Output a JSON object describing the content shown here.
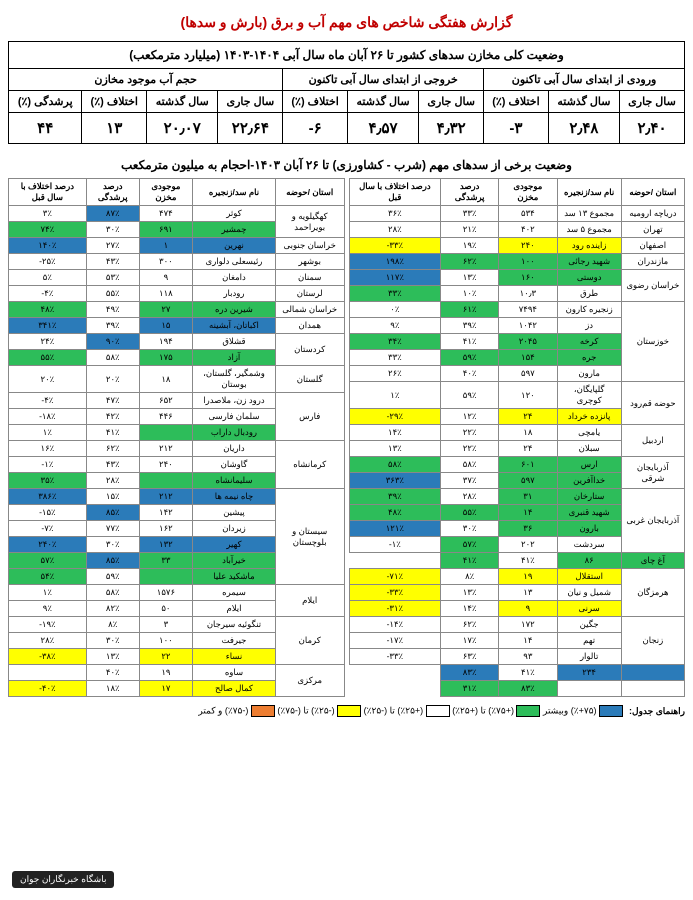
{
  "colors": {
    "blue": "#2b7bb9",
    "green": "#2dbd5a",
    "white": "#ffffff",
    "yellow": "#ffff00",
    "orange": "#ed7d31",
    "title": "#c00000"
  },
  "title": "گزارش هفتگی شاخص های مهم آب و برق (بارش و سدها)",
  "summary": {
    "caption": "وضعیت کلی مخازن سدهای کشور تا ۲۶ آبان ماه سال آبی ۱۴۰۴-۱۴۰۳ (میلیارد مترمکعب)",
    "groups": [
      {
        "label": "ورودی از ابتدای سال آبی تاکنون",
        "cols": [
          "سال جاری",
          "سال گذشته",
          "اختلاف (٪)"
        ],
        "vals": [
          "۲٫۴۰",
          "۲٫۴۸",
          "-۳"
        ]
      },
      {
        "label": "خروجی از ابتدای سال آبی تاکنون",
        "cols": [
          "سال جاری",
          "سال گذشته",
          "اختلاف (٪)"
        ],
        "vals": [
          "۴٫۳۲",
          "۴٫۵۷",
          "-۶"
        ]
      },
      {
        "label": "حجم آب موجود مخازن",
        "cols": [
          "سال جاری",
          "سال گذشته",
          "اختلاف (٪)",
          "پرشدگی (٪)"
        ],
        "vals": [
          "۲۲٫۶۴",
          "۲۰٫۰۷",
          "۱۳",
          "۴۴"
        ]
      }
    ]
  },
  "sub_title": "وضعیت برخی از سدهای مهم (شرب - کشاورزی) تا ۲۶ آبان ۱۴۰۳-احجام به میلیون مترمکعب",
  "dam_headers": [
    "استان /حوضه",
    "نام سد/زنجیره",
    "موجودی مخزن",
    "درصد پرشدگی",
    "درصد اختلاف با سال قبل"
  ],
  "right_rows": [
    {
      "prov": "دریاچه ارومیه",
      "rs": 1,
      "dam": "مجموع ۱۳ سد",
      "vol": "۵۳۴",
      "fill": "۳۳٪",
      "fc": "white",
      "diff": "۳۶٪",
      "dc": "white"
    },
    {
      "prov": "تهران",
      "rs": 1,
      "dam": "مجموع ۵ سد",
      "vol": "۴۰۲",
      "fill": "۲۱٪",
      "fc": "white",
      "diff": "۲۸٪",
      "dc": "white"
    },
    {
      "prov": "اصفهان",
      "rs": 1,
      "dam": "زاینده رود",
      "vol": "۲۴۰",
      "vc": "yellow",
      "fill": "۱۹٪",
      "fc": "white",
      "diff": "-۳۳٪",
      "dc": "yellow"
    },
    {
      "prov": "مازندران",
      "rs": 1,
      "dam": "شهید رجائی",
      "vol": "۱۰۰",
      "vc": "green",
      "fill": "۶۲٪",
      "fc": "green",
      "diff": "۱۹۸٪",
      "dc": "blue"
    },
    {
      "prov": "خراسان رضوی",
      "rs": 2,
      "dam": "دوستی",
      "vol": "۱۶۰",
      "vc": "green",
      "fill": "۱۳٪",
      "fc": "white",
      "diff": "۱۱۷٪",
      "dc": "blue"
    },
    {
      "dam": "طرق",
      "vol": "۱۰٫۳",
      "fill": "۱۰٪",
      "fc": "white",
      "diff": "۳۳٪",
      "dc": "green"
    },
    {
      "prov": "خوزستان",
      "rs": 5,
      "dam": "زنجیره کارون",
      "vol": "۷۴۹۴",
      "fill": "۶۱٪",
      "fc": "green",
      "diff": "۰٪",
      "dc": "white"
    },
    {
      "dam": "دز",
      "vol": "۱۰۴۲",
      "fill": "۳۹٪",
      "fc": "white",
      "diff": "۹٪",
      "dc": "white"
    },
    {
      "dam": "کرخه",
      "vol": "۲۰۴۵",
      "vc": "green",
      "fill": "۴۱٪",
      "fc": "white",
      "diff": "۳۴٪",
      "dc": "green"
    },
    {
      "dam": "جره",
      "vol": "۱۵۴",
      "vc": "green",
      "fill": "۵۹٪",
      "fc": "green",
      "diff": "۳۳٪",
      "dc": "white"
    },
    {
      "dam": "مارون",
      "vol": "۵۹۷",
      "fill": "۴۰٪",
      "fc": "white",
      "diff": "۲۶٪",
      "dc": "white"
    },
    {
      "prov": "حوضه قم‌رود",
      "rs": 2,
      "dam": "گلپایگان، کوچری",
      "vol": "۱۲۰",
      "fill": "۵۹٪",
      "fc": "white",
      "diff": "۱٪",
      "dc": "white"
    },
    {
      "dam": "پانزده خرداد",
      "vol": "۲۴",
      "vc": "yellow",
      "fill": "۱۲٪",
      "fc": "white",
      "diff": "-۲۹٪",
      "dc": "yellow"
    },
    {
      "prov": "اردبیل",
      "rs": 2,
      "dam": "یامچی",
      "vol": "۱۸",
      "fill": "۲۲٪",
      "fc": "white",
      "diff": "۱۴٪",
      "dc": "white"
    },
    {
      "dam": "سبلان",
      "vol": "۲۴",
      "fill": "۲۲٪",
      "fc": "white",
      "diff": "۱۳٪",
      "dc": "white"
    },
    {
      "prov": "آذربایجان شرقی",
      "rs": 2,
      "dam": "ارس",
      "vol": "۶۰۱",
      "vc": "green",
      "fill": "۵۸٪",
      "fc": "white",
      "diff": "۵۸٪",
      "dc": "green"
    },
    {
      "dam": "خداآفرین",
      "vol": "۵۹۷",
      "vc": "green",
      "fill": "۳۷٪",
      "fc": "white",
      "diff": "۳۶۳٪",
      "dc": "blue"
    },
    {
      "prov": "آذربایجان غربی",
      "rs": 4,
      "dam": "ستارخان",
      "vol": "۳۱",
      "vc": "green",
      "fill": "۲۸٪",
      "fc": "white",
      "diff": "۳۹٪",
      "dc": "green"
    },
    {
      "dam": "شهید قنبری",
      "vol": "۱۴",
      "vc": "green",
      "fill": "۵۵٪",
      "fc": "green",
      "diff": "۴۸٪",
      "dc": "green"
    },
    {
      "dam": "بارون",
      "vol": "۳۶",
      "vc": "green",
      "fill": "۳۰٪",
      "fc": "white",
      "diff": "۱۲۱٪",
      "dc": "blue"
    },
    {
      "dam": "سردشت",
      "vol": "۲۰۲",
      "fill": "۵۷٪",
      "fc": "green",
      "diff": "-۱٪",
      "dc": "white"
    },
    {
      "dam": "آغ چای",
      "vc": "green",
      "vol": "۸۶",
      "fill": "۴۱٪",
      "fc": "white",
      "diff": "۴۱٪",
      "dc": "green"
    },
    {
      "prov": "هرمزگان",
      "rs": 3,
      "dam": "استقلال",
      "vol": "۱۹",
      "vc": "yellow",
      "fill": "۸٪",
      "fc": "white",
      "diff": "-۷۱٪",
      "dc": "yellow"
    },
    {
      "dam": "شمیل و نیان",
      "vol": "۱۳",
      "fill": "۱۳٪",
      "fc": "white",
      "diff": "-۳۳٪",
      "dc": "yellow"
    },
    {
      "dam": "سرنی",
      "vol": "۹",
      "vc": "yellow",
      "fill": "۱۴٪",
      "fc": "white",
      "diff": "-۳۱٪",
      "dc": "yellow"
    },
    {
      "prov": "زنجان",
      "rs": 3,
      "dam": "جگین",
      "vol": "۱۷۲",
      "fill": "۶۲٪",
      "fc": "white",
      "diff": "-۱۴٪",
      "dc": "white"
    },
    {
      "dam": "تهم",
      "vol": "۱۴",
      "fill": "۱۷٪",
      "fc": "white",
      "diff": "-۱۷٪",
      "dc": "white"
    },
    {
      "dam": "تالوار",
      "vol": "۹۳",
      "fill": "۶۳٪",
      "fc": "white",
      "diff": "-۳۳٪",
      "dc": "white"
    },
    {
      "dam": "",
      "vol": "۲۳۴",
      "vc": "blue",
      "fill": "۴۱٪",
      "fc": "white",
      "diff": "۸۳٪",
      "dc": "blue"
    },
    {
      "dam": "",
      "vol": "",
      "fill": "۸۳٪",
      "fc": "green",
      "diff": "۳۱٪",
      "dc": "green"
    }
  ],
  "left_rows": [
    {
      "prov": "کهگیلویه و بویراحمد",
      "rs": 2,
      "dam": "کوثر",
      "vol": "۴۷۴",
      "fill": "۸۷٪",
      "fc": "blue",
      "diff": "۳٪",
      "dc": "white"
    },
    {
      "dam": "چمشیر",
      "vol": "۶۹۱",
      "vc": "green",
      "fill": "۳۰٪",
      "fc": "white",
      "diff": "۷۴٪",
      "dc": "green"
    },
    {
      "prov": "خراسان جنوبی",
      "rs": 1,
      "dam": "نهرین",
      "vol": "۱",
      "vc": "blue",
      "fill": "۲۷٪",
      "fc": "white",
      "diff": "۱۴۰٪",
      "dc": "blue"
    },
    {
      "prov": "بوشهر",
      "rs": 1,
      "dam": "رئیسعلی دلواری",
      "vol": "۳۰۰",
      "fill": "۴۳٪",
      "fc": "white",
      "diff": "-۲۵٪",
      "dc": "white"
    },
    {
      "prov": "سمنان",
      "rs": 1,
      "dam": "دامغان",
      "vol": "۹",
      "fill": "۵۳٪",
      "fc": "white",
      "diff": "۵٪",
      "dc": "white"
    },
    {
      "prov": "لرستان",
      "rs": 1,
      "dam": "رودبار",
      "vol": "۱۱۸",
      "fill": "۵۵٪",
      "fc": "white",
      "diff": "-۴٪",
      "dc": "white"
    },
    {
      "prov": "خراسان شمالی",
      "rs": 1,
      "dam": "شیرین دره",
      "vol": "۲۷",
      "vc": "green",
      "fill": "۴۹٪",
      "fc": "white",
      "diff": "۴۸٪",
      "dc": "green"
    },
    {
      "prov": "همدان",
      "rs": 1,
      "dam": "اکباتان، آبشینه",
      "vol": "۱۵",
      "vc": "blue",
      "fill": "۳۹٪",
      "fc": "white",
      "diff": "۳۴۱٪",
      "dc": "blue"
    },
    {
      "prov": "کردستان",
      "rs": 2,
      "dam": "قشلاق",
      "vol": "۱۹۴",
      "fill": "۹۰٪",
      "fc": "blue",
      "diff": "۲۴٪",
      "dc": "white"
    },
    {
      "dam": "آزاد",
      "vol": "۱۷۵",
      "vc": "green",
      "fill": "۵۸٪",
      "fc": "white",
      "diff": "۵۵٪",
      "dc": "green"
    },
    {
      "prov": "گلستان",
      "rs": 1,
      "dam": "وشمگیر، گلستان، بوستان",
      "vol": "۱۸",
      "fill": "۲۰٪",
      "fc": "white",
      "diff": "۲۰٪",
      "dc": "white"
    },
    {
      "prov": "فارس",
      "rs": 3,
      "dam": "درود زن، ملاصدرا",
      "vol": "۶۵۲",
      "fill": "۴۷٪",
      "fc": "white",
      "diff": "-۴٪",
      "dc": "white"
    },
    {
      "dam": "سلمان فارسی",
      "vol": "۴۴۶",
      "fill": "۴۲٪",
      "fc": "white",
      "diff": "-۱۸٪",
      "dc": "white"
    },
    {
      "dam": "رودبال داراب",
      "vol": "",
      "vc": "green",
      "fill": "۴۱٪",
      "fc": "white",
      "diff": "۱٪",
      "dc": "white"
    },
    {
      "prov": "کرمانشاه",
      "rs": 3,
      "dam": "داریان",
      "vol": "۲۱۲",
      "fill": "۶۲٪",
      "fc": "white",
      "diff": "۱۶٪",
      "dc": "white"
    },
    {
      "dam": "گاوشان",
      "vol": "۲۴۰",
      "fill": "۴۳٪",
      "fc": "white",
      "diff": "-۱٪",
      "dc": "white"
    },
    {
      "dam": "سلیمانشاه",
      "vol": "",
      "vc": "green",
      "fill": "۲۸٪",
      "fc": "white",
      "diff": "۳۵٪",
      "dc": "green"
    },
    {
      "prov": "سیستان و بلوچستان",
      "rs": 6,
      "dam": "چاه نیمه ها",
      "vol": "۲۱۲",
      "vc": "blue",
      "fill": "۱۵٪",
      "fc": "white",
      "diff": "۳۸۶٪",
      "dc": "blue"
    },
    {
      "dam": "پیشین",
      "vol": "۱۴۲",
      "fill": "۸۵٪",
      "fc": "blue",
      "diff": "-۱۵٪",
      "dc": "white"
    },
    {
      "dam": "زیردان",
      "vol": "۱۶۲",
      "fill": "۷۷٪",
      "fc": "white",
      "diff": "-۷٪",
      "dc": "white"
    },
    {
      "dam": "کهیر",
      "vol": "۱۳۲",
      "vc": "blue",
      "fill": "۳۰٪",
      "fc": "white",
      "diff": "۲۴۰٪",
      "dc": "blue"
    },
    {
      "dam": "خیرآباد",
      "vol": "۳۳",
      "vc": "green",
      "fill": "۸۵٪",
      "fc": "blue",
      "diff": "۵۷٪",
      "dc": "green"
    },
    {
      "dam": "ماشکید علیا",
      "vol": "",
      "vc": "green",
      "fill": "۵۹٪",
      "fc": "white",
      "diff": "۵۴٪",
      "dc": "green"
    },
    {
      "prov": "ایلام",
      "rs": 2,
      "dam": "سیمره",
      "vol": "۱۵۷۶",
      "fill": "۵۸٪",
      "fc": "white",
      "diff": "۱٪",
      "dc": "white"
    },
    {
      "dam": "ایلام",
      "vol": "۵۰",
      "fill": "۸۲٪",
      "fc": "white",
      "diff": "۹٪",
      "dc": "white"
    },
    {
      "prov": "کرمان",
      "rs": 3,
      "dam": "تنگوئیه سیرجان",
      "vol": "۳",
      "fill": "۸٪",
      "fc": "white",
      "diff": "-۱۹٪",
      "dc": "white"
    },
    {
      "dam": "جیرفت",
      "vol": "۱۰۰",
      "fill": "۳۰٪",
      "fc": "white",
      "diff": "۲۸٪",
      "dc": "white"
    },
    {
      "dam": "نساء",
      "vol": "۲۲",
      "vc": "yellow",
      "fill": "۱۳٪",
      "fc": "white",
      "diff": "-۳۸٪",
      "dc": "yellow"
    },
    {
      "prov": "مرکزی",
      "rs": 2,
      "dam": "ساوه",
      "vol": "۱۹",
      "fill": "۴۰٪",
      "fc": "white",
      "diff": "",
      "dc": "white"
    },
    {
      "dam": "کمال صالح",
      "vol": "۱۷",
      "vc": "yellow",
      "fill": "۱۸٪",
      "fc": "white",
      "diff": "-۴۰٪",
      "dc": "yellow"
    }
  ],
  "legend": {
    "title": "راهنمای جدول:",
    "items": [
      {
        "c": "blue",
        "t": "(۷۵+٪) وبیشتر"
      },
      {
        "c": "green",
        "t": "(+۷۵٪) تا (+۲۵٪)"
      },
      {
        "c": "white",
        "t": "(+۲۵٪) تا (-۲۵٪)"
      },
      {
        "c": "yellow",
        "t": "(-۲۵٪) تا (-۷۵٪)"
      },
      {
        "c": "orange",
        "t": "(-۷۵٪) و کمتر"
      }
    ]
  },
  "footer": "باشگاه خبرنگاران جوان"
}
